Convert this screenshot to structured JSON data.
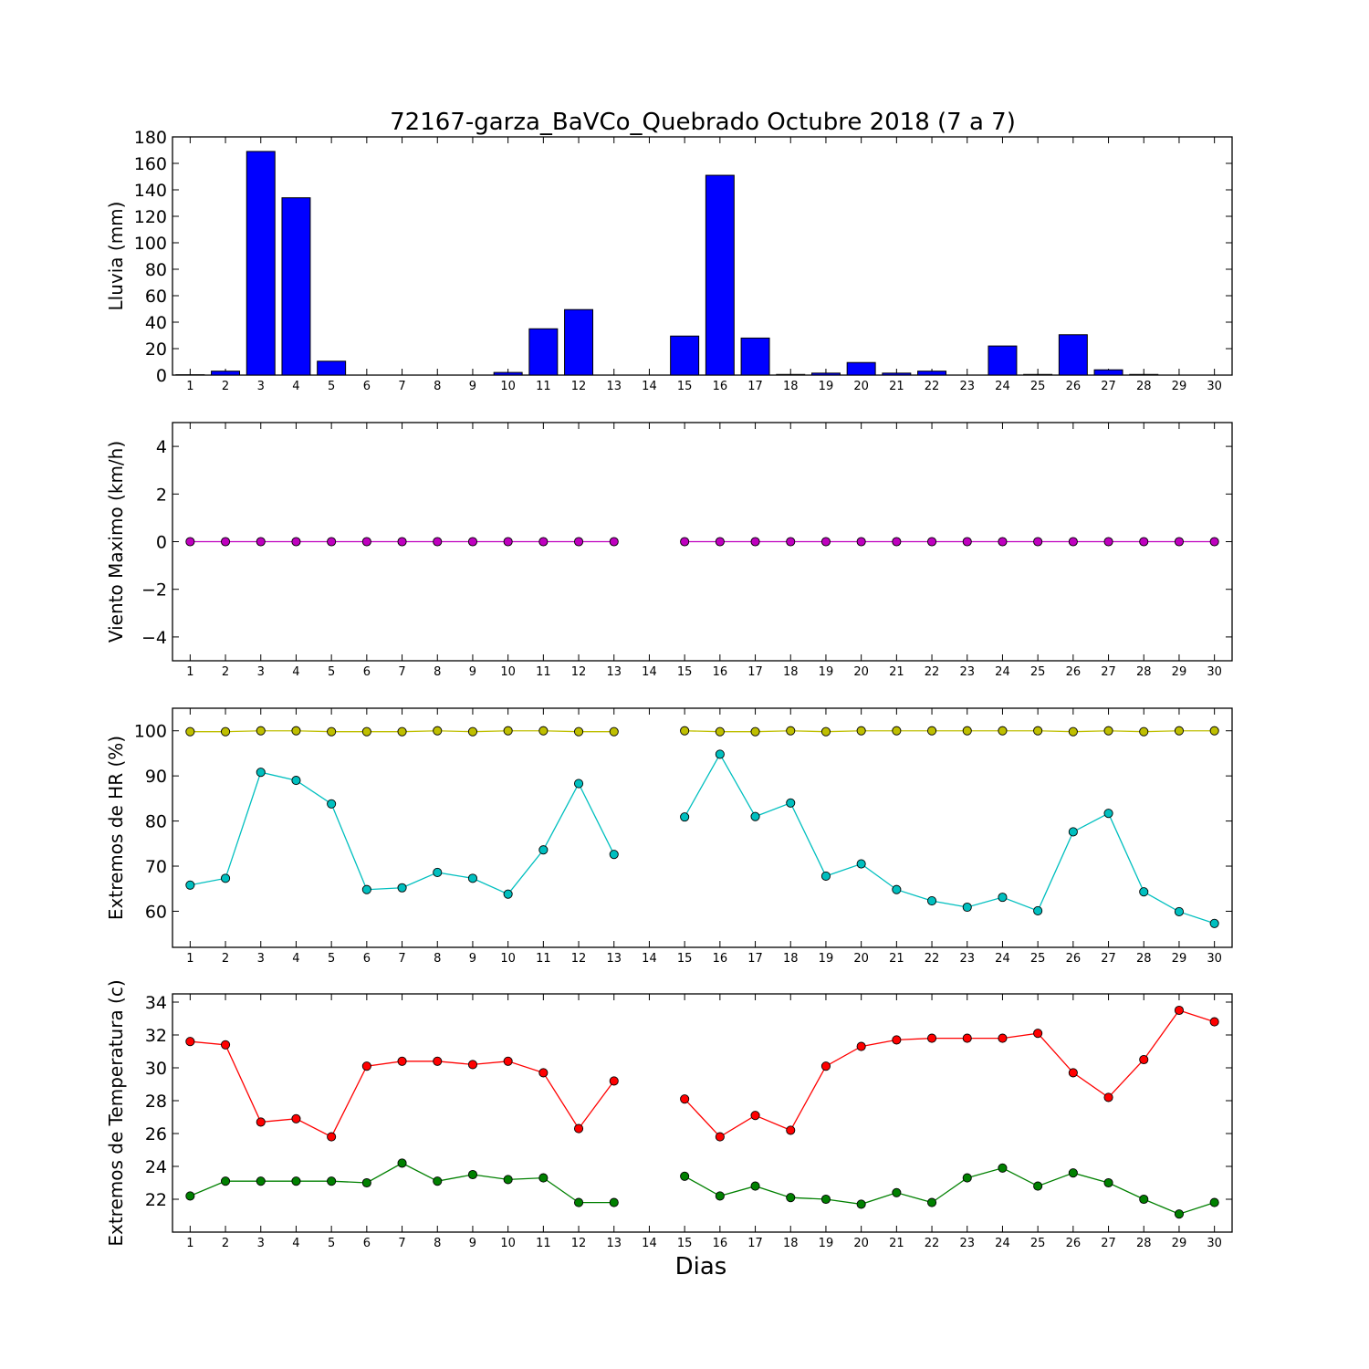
{
  "figure": {
    "title": "72167-garza_BaVCo_Quebrado Octubre 2018  (7 a 7)",
    "xlabel": "Dias"
  },
  "chart_data": [
    {
      "type": "bar",
      "ylabel": "Lluvia (mm)",
      "ylim": [
        0,
        180
      ],
      "yticks": [
        0,
        20,
        40,
        60,
        80,
        100,
        120,
        140,
        160,
        180
      ],
      "xlim": [
        0.5,
        30.5
      ],
      "categories": [
        1,
        2,
        3,
        4,
        5,
        6,
        7,
        8,
        9,
        10,
        11,
        12,
        13,
        14,
        15,
        16,
        17,
        18,
        19,
        20,
        21,
        22,
        23,
        24,
        25,
        26,
        27,
        28,
        29,
        30
      ],
      "series": [
        {
          "color": "#0000ff",
          "values": [
            0.3,
            3,
            169,
            134,
            10.5,
            0,
            0,
            0,
            0,
            2,
            35,
            49.5,
            0,
            0,
            29.5,
            151,
            28,
            0.5,
            1.5,
            9.5,
            1.5,
            3,
            0,
            22,
            0.5,
            30.5,
            4,
            0.5,
            0,
            0
          ]
        }
      ]
    },
    {
      "type": "line",
      "ylabel": "Viento Maximo (km/h)",
      "ylim": [
        -5,
        5
      ],
      "yticks": [
        -4,
        -2,
        0,
        2,
        4
      ],
      "xlim": [
        0.5,
        30.5
      ],
      "x": [
        1,
        2,
        3,
        4,
        5,
        6,
        7,
        8,
        9,
        10,
        11,
        12,
        13,
        14,
        15,
        16,
        17,
        18,
        19,
        20,
        21,
        22,
        23,
        24,
        25,
        26,
        27,
        28,
        29,
        30
      ],
      "series": [
        {
          "color": "#bf00bf",
          "values": [
            0,
            0,
            0,
            0,
            0,
            0,
            0,
            0,
            0,
            0,
            0,
            0,
            0,
            null,
            0,
            0,
            0,
            0,
            0,
            0,
            0,
            0,
            0,
            0,
            0,
            0,
            0,
            0,
            0,
            0
          ]
        }
      ]
    },
    {
      "type": "line",
      "ylabel": "Extremos de HR (%)",
      "ylim": [
        52,
        105
      ],
      "yticks": [
        60,
        70,
        80,
        90,
        100
      ],
      "xlim": [
        0.5,
        30.5
      ],
      "x": [
        1,
        2,
        3,
        4,
        5,
        6,
        7,
        8,
        9,
        10,
        11,
        12,
        13,
        14,
        15,
        16,
        17,
        18,
        19,
        20,
        21,
        22,
        23,
        24,
        25,
        26,
        27,
        28,
        29,
        30
      ],
      "series": [
        {
          "color": "#bfbf00",
          "values": [
            99.8,
            99.8,
            100,
            100,
            99.8,
            99.8,
            99.8,
            100,
            99.8,
            100,
            100,
            99.8,
            99.8,
            null,
            100,
            99.8,
            99.8,
            100,
            99.8,
            100,
            100,
            100,
            100,
            100,
            100,
            99.8,
            100,
            99.8,
            100,
            100
          ]
        },
        {
          "color": "#00bfbf",
          "values": [
            65.8,
            67.3,
            90.8,
            89,
            83.8,
            64.8,
            65.2,
            68.6,
            67.3,
            63.8,
            73.6,
            88.3,
            72.6,
            null,
            80.9,
            94.8,
            81,
            84,
            67.8,
            70.5,
            64.8,
            62.3,
            60.9,
            63.1,
            60.1,
            77.6,
            81.7,
            64.3,
            59.9,
            57.3
          ]
        }
      ]
    },
    {
      "type": "line",
      "ylabel": "Extremos de Temperatura (c)",
      "ylim": [
        20,
        34.5
      ],
      "yticks": [
        22,
        24,
        26,
        28,
        30,
        32,
        34
      ],
      "xlim": [
        0.5,
        30.5
      ],
      "x": [
        1,
        2,
        3,
        4,
        5,
        6,
        7,
        8,
        9,
        10,
        11,
        12,
        13,
        14,
        15,
        16,
        17,
        18,
        19,
        20,
        21,
        22,
        23,
        24,
        25,
        26,
        27,
        28,
        29,
        30
      ],
      "series": [
        {
          "color": "#ff0000",
          "values": [
            31.6,
            31.4,
            26.7,
            26.9,
            25.8,
            30.1,
            30.4,
            30.4,
            30.2,
            30.4,
            29.7,
            26.3,
            29.2,
            null,
            28.1,
            25.8,
            27.1,
            26.2,
            30.1,
            31.3,
            31.7,
            31.8,
            31.8,
            31.8,
            32.1,
            29.7,
            28.2,
            30.5,
            33.5,
            32.8
          ]
        },
        {
          "color": "#008000",
          "values": [
            22.2,
            23.1,
            23.1,
            23.1,
            23.1,
            23,
            24.2,
            23.1,
            23.5,
            23.2,
            23.3,
            21.8,
            21.8,
            null,
            23.4,
            22.2,
            22.8,
            22.1,
            22,
            21.7,
            22.4,
            21.8,
            23.3,
            23.9,
            22.8,
            23.6,
            23,
            22,
            21.1,
            21.8
          ]
        }
      ]
    }
  ]
}
